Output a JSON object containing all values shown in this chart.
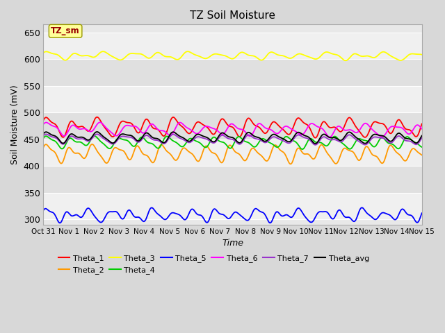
{
  "title": "TZ Soil Moisture",
  "xlabel": "Time",
  "ylabel": "Soil Moisture (mV)",
  "ylim": [
    290,
    665
  ],
  "xlim": [
    0,
    350
  ],
  "fig_bg_color": "#d8d8d8",
  "plot_bg_color": "#e8e8e8",
  "grid_color": "#ffffff",
  "series": {
    "Theta_1": {
      "color": "#ff0000",
      "base": 474,
      "amp": 12,
      "amp2": 4,
      "freq_scale": 1.0,
      "trend": -0.005
    },
    "Theta_2": {
      "color": "#ff9900",
      "base": 424,
      "amp": 12,
      "amp2": 3,
      "freq_scale": 1.1,
      "trend": -0.006
    },
    "Theta_3": {
      "color": "#ffff00",
      "base": 607,
      "amp": 5,
      "amp2": 2,
      "freq_scale": 0.9,
      "trend": -0.003
    },
    "Theta_4": {
      "color": "#00cc00",
      "base": 445,
      "amp": 8,
      "amp2": 2,
      "freq_scale": 1.05,
      "trend": -0.004
    },
    "Theta_5": {
      "color": "#0000ff",
      "base": 308,
      "amp": 8,
      "amp2": 4,
      "freq_scale": 1.2,
      "trend": 0.0
    },
    "Theta_6": {
      "color": "#ff00ff",
      "base": 470,
      "amp": 8,
      "amp2": 3,
      "freq_scale": 0.95,
      "trend": -0.008
    },
    "Theta_7": {
      "color": "#9933cc",
      "base": 451,
      "amp": 6,
      "amp2": 2,
      "freq_scale": 1.0,
      "trend": -0.006
    },
    "Theta_avg": {
      "color": "#000000",
      "base": 454,
      "amp": 7,
      "amp2": 2,
      "freq_scale": 1.0,
      "trend": -0.003
    }
  },
  "series_order": [
    "Theta_1",
    "Theta_2",
    "Theta_3",
    "Theta_4",
    "Theta_5",
    "Theta_6",
    "Theta_7",
    "Theta_avg"
  ],
  "xtick_labels": [
    "Oct 31",
    "Nov 1",
    "Nov 2",
    "Nov 3",
    "Nov 4",
    "Nov 5",
    "Nov 6",
    "Nov 7",
    "Nov 8",
    "Nov 9",
    "Nov 10",
    "Nov 11",
    "Nov 12",
    "Nov 13",
    "Nov 14",
    "Nov 15"
  ],
  "xtick_positions": [
    0,
    23.33,
    46.67,
    70,
    93.33,
    116.67,
    140,
    163.33,
    186.67,
    210,
    233.33,
    256.67,
    280,
    303.33,
    326.67,
    350
  ],
  "ytick_labels": [
    "300",
    "350",
    "400",
    "450",
    "500",
    "550",
    "600",
    "650"
  ],
  "ytick_values": [
    300,
    350,
    400,
    450,
    500,
    550,
    600,
    650
  ],
  "annotation_text": "TZ_sm",
  "annotation_color": "#990000",
  "annotation_bg": "#ffff99",
  "annotation_border": "#999900",
  "n_points": 700
}
